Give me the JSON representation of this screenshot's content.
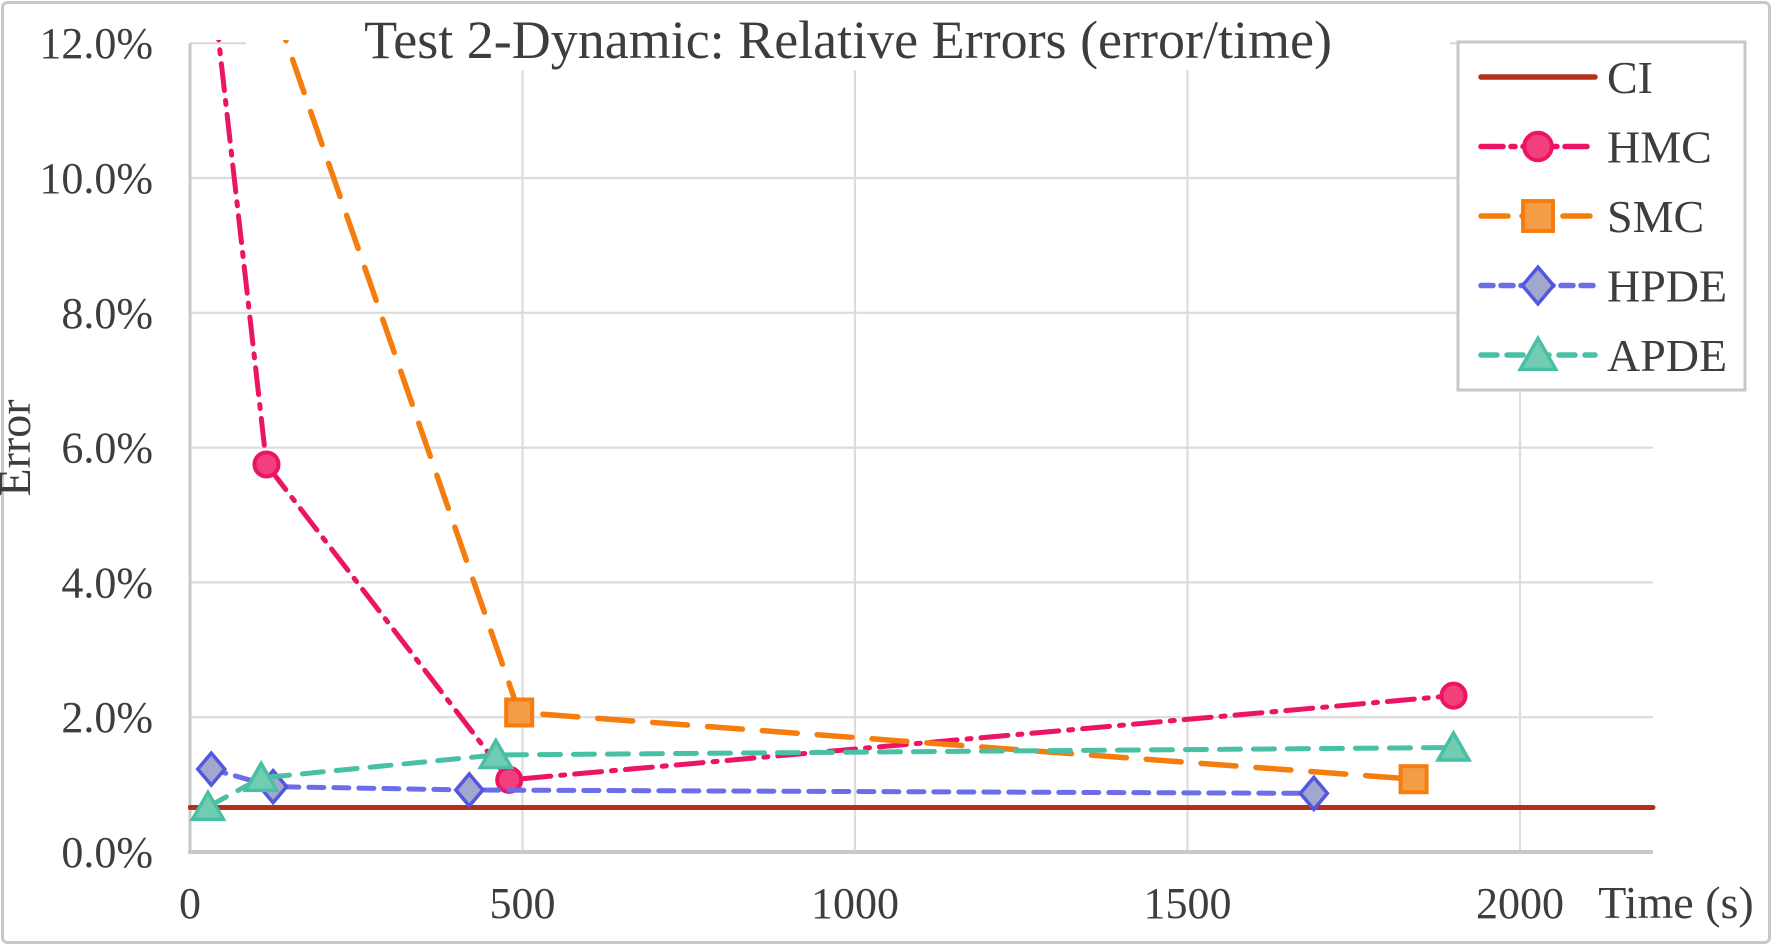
{
  "figure": {
    "title": "Test 2-Dynamic: Relative Errors (error/time)",
    "background": "#ffffff",
    "border_color": "#c8c8c8"
  },
  "axes": {
    "x": {
      "label": "Time (s)",
      "tick_labels": [
        "0",
        "500",
        "1000",
        "1500",
        "2000"
      ],
      "tick_values": [
        0,
        500,
        1000,
        1500,
        2000
      ],
      "range": [
        0,
        2200
      ]
    },
    "y": {
      "label": "Error",
      "tick_labels": [
        "0.0%",
        "2.0%",
        "4.0%",
        "6.0%",
        "8.0%",
        "10.0%",
        "12.0%"
      ],
      "tick_values": [
        0,
        2,
        4,
        6,
        8,
        10,
        12
      ],
      "range": [
        0,
        12.03
      ]
    },
    "grid_color": "#dcdcdc",
    "spine_color": "#c8c8c8",
    "text_color": "#3d3d3d"
  },
  "legend": {
    "position": "top-right",
    "border_color": "#c8c8c8",
    "entries": [
      "CI",
      "HMC",
      "SMC",
      "HPDE",
      "APDE"
    ]
  },
  "chart_data": {
    "type": "line",
    "title": "Test 2-Dynamic: Relative Errors (error/time)",
    "xlabel": "Time (s)",
    "ylabel": "Error",
    "xlim": [
      0,
      2200
    ],
    "ylim_percent": [
      0,
      12.03
    ],
    "grid": true,
    "legend_position": "top-right",
    "x_gridlines": [
      500,
      1000,
      1500,
      2000
    ],
    "y_gridlines_percent": [
      2,
      4,
      6,
      8,
      10,
      12
    ],
    "series": [
      {
        "name": "CI",
        "color": "#b5301c",
        "line_style": "solid",
        "marker": "none",
        "marker_fill": "#b5301c",
        "points": [
          [
            0,
            0.66
          ],
          [
            2200,
            0.66
          ]
        ]
      },
      {
        "name": "HMC",
        "color": "#ec1464",
        "line_style": "dashdot",
        "marker": "circle",
        "marker_fill": "#f43f7d",
        "points": [
          [
            30,
            13.2
          ],
          [
            115,
            5.75
          ],
          [
            480,
            1.07
          ],
          [
            1900,
            2.32
          ]
        ]
      },
      {
        "name": "SMC",
        "color": "#f57d0e",
        "line_style": "longdash",
        "marker": "square",
        "marker_fill": "#f49d47",
        "points": [
          [
            100,
            13.3
          ],
          [
            495,
            2.07
          ],
          [
            1840,
            1.08
          ]
        ]
      },
      {
        "name": "HPDE",
        "color": "#6b6de9",
        "line_style": "shortdash",
        "marker": "diamond",
        "marker_fill": "#a2a7ce",
        "marker_stroke": "#5356de",
        "points": [
          [
            32,
            1.23
          ],
          [
            125,
            0.97
          ],
          [
            420,
            0.92
          ],
          [
            1690,
            0.87
          ]
        ]
      },
      {
        "name": "APDE",
        "color": "#49c0a6",
        "line_style": "meddash",
        "marker": "triangle",
        "marker_fill": "#72ccb2",
        "points": [
          [
            27,
            0.67
          ],
          [
            107,
            1.1
          ],
          [
            460,
            1.44
          ],
          [
            1900,
            1.55
          ]
        ]
      }
    ]
  }
}
